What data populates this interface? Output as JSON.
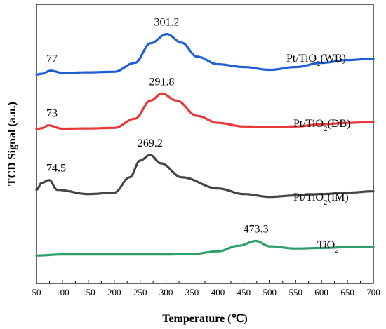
{
  "chart_data": {
    "type": "line",
    "title": "",
    "xlabel": "Temperature (℃)",
    "ylabel": "TCD Signal (a.u.)",
    "xlim": [
      50,
      700
    ],
    "x_ticks": [
      50,
      100,
      150,
      200,
      250,
      300,
      350,
      400,
      450,
      500,
      550,
      600,
      650,
      700
    ],
    "y_ticks_shown": false,
    "grid": false,
    "legend": "none (labels placed beside each curve)",
    "series": [
      {
        "name": "Pt/TiO2(WB)",
        "label_main": "Pt/TiO",
        "label_sub": "2",
        "label_tail": "(WB)",
        "color": "#1f5fd6",
        "baseline": 0.755,
        "peaks": [
          {
            "x": 77,
            "height": 0.012,
            "width": 12,
            "label": "77"
          },
          {
            "x": 301.2,
            "height": 0.14,
            "width": 42,
            "label": "301.2"
          }
        ],
        "x": [
          50,
          60,
          77,
          100,
          150,
          200,
          240,
          270,
          301.2,
          330,
          360,
          400,
          450,
          500,
          550,
          600,
          650,
          700
        ],
        "values": [
          0.748,
          0.751,
          0.762,
          0.754,
          0.756,
          0.758,
          0.79,
          0.86,
          0.893,
          0.862,
          0.812,
          0.785,
          0.775,
          0.765,
          0.775,
          0.79,
          0.8,
          0.805
        ]
      },
      {
        "name": "Pt/TiO2(DB)",
        "label_main": "Pt/TiO",
        "label_sub": "2",
        "label_tail": "(DB)",
        "color": "#e8383a",
        "baseline": 0.555,
        "peaks": [
          {
            "x": 73,
            "height": 0.013,
            "width": 12,
            "label": "73"
          },
          {
            "x": 291.8,
            "height": 0.125,
            "width": 42,
            "label": "291.8"
          }
        ],
        "x": [
          50,
          60,
          73,
          100,
          150,
          200,
          240,
          270,
          291.8,
          320,
          360,
          400,
          450,
          500,
          550,
          600,
          650,
          700
        ],
        "values": [
          0.552,
          0.556,
          0.566,
          0.554,
          0.555,
          0.557,
          0.59,
          0.655,
          0.68,
          0.655,
          0.6,
          0.575,
          0.562,
          0.56,
          0.562,
          0.57,
          0.575,
          0.578
        ]
      },
      {
        "name": "Pt/TiO2(IM)",
        "label_main": "Pt/TiO",
        "label_sub": "2",
        "label_tail": "(IM)",
        "color": "#454545",
        "baseline": 0.32,
        "peaks": [
          {
            "x": 74.5,
            "height": 0.045,
            "width": 12,
            "label": "74.5"
          },
          {
            "x": 269.2,
            "height": 0.14,
            "width": 40,
            "label": "269.2"
          }
        ],
        "x": [
          50,
          60,
          74.5,
          90,
          150,
          200,
          230,
          250,
          269.2,
          290,
          330,
          400,
          450,
          500,
          550,
          600,
          650,
          700
        ],
        "values": [
          0.335,
          0.36,
          0.37,
          0.335,
          0.32,
          0.325,
          0.38,
          0.44,
          0.46,
          0.43,
          0.38,
          0.34,
          0.32,
          0.31,
          0.315,
          0.32,
          0.325,
          0.33
        ]
      },
      {
        "name": "TiO2",
        "label_main": "TiO",
        "label_sub": "2",
        "label_tail": "",
        "color": "#2f9e6a",
        "baseline": 0.104,
        "peaks": [
          {
            "x": 473.3,
            "height": 0.05,
            "width": 28,
            "label": "473.3"
          }
        ],
        "x": [
          50,
          100,
          200,
          300,
          350,
          400,
          440,
          473.3,
          500,
          550,
          600,
          650,
          700
        ],
        "values": [
          0.1,
          0.104,
          0.104,
          0.104,
          0.105,
          0.115,
          0.135,
          0.152,
          0.133,
          0.125,
          0.127,
          0.13,
          0.13
        ]
      }
    ]
  }
}
